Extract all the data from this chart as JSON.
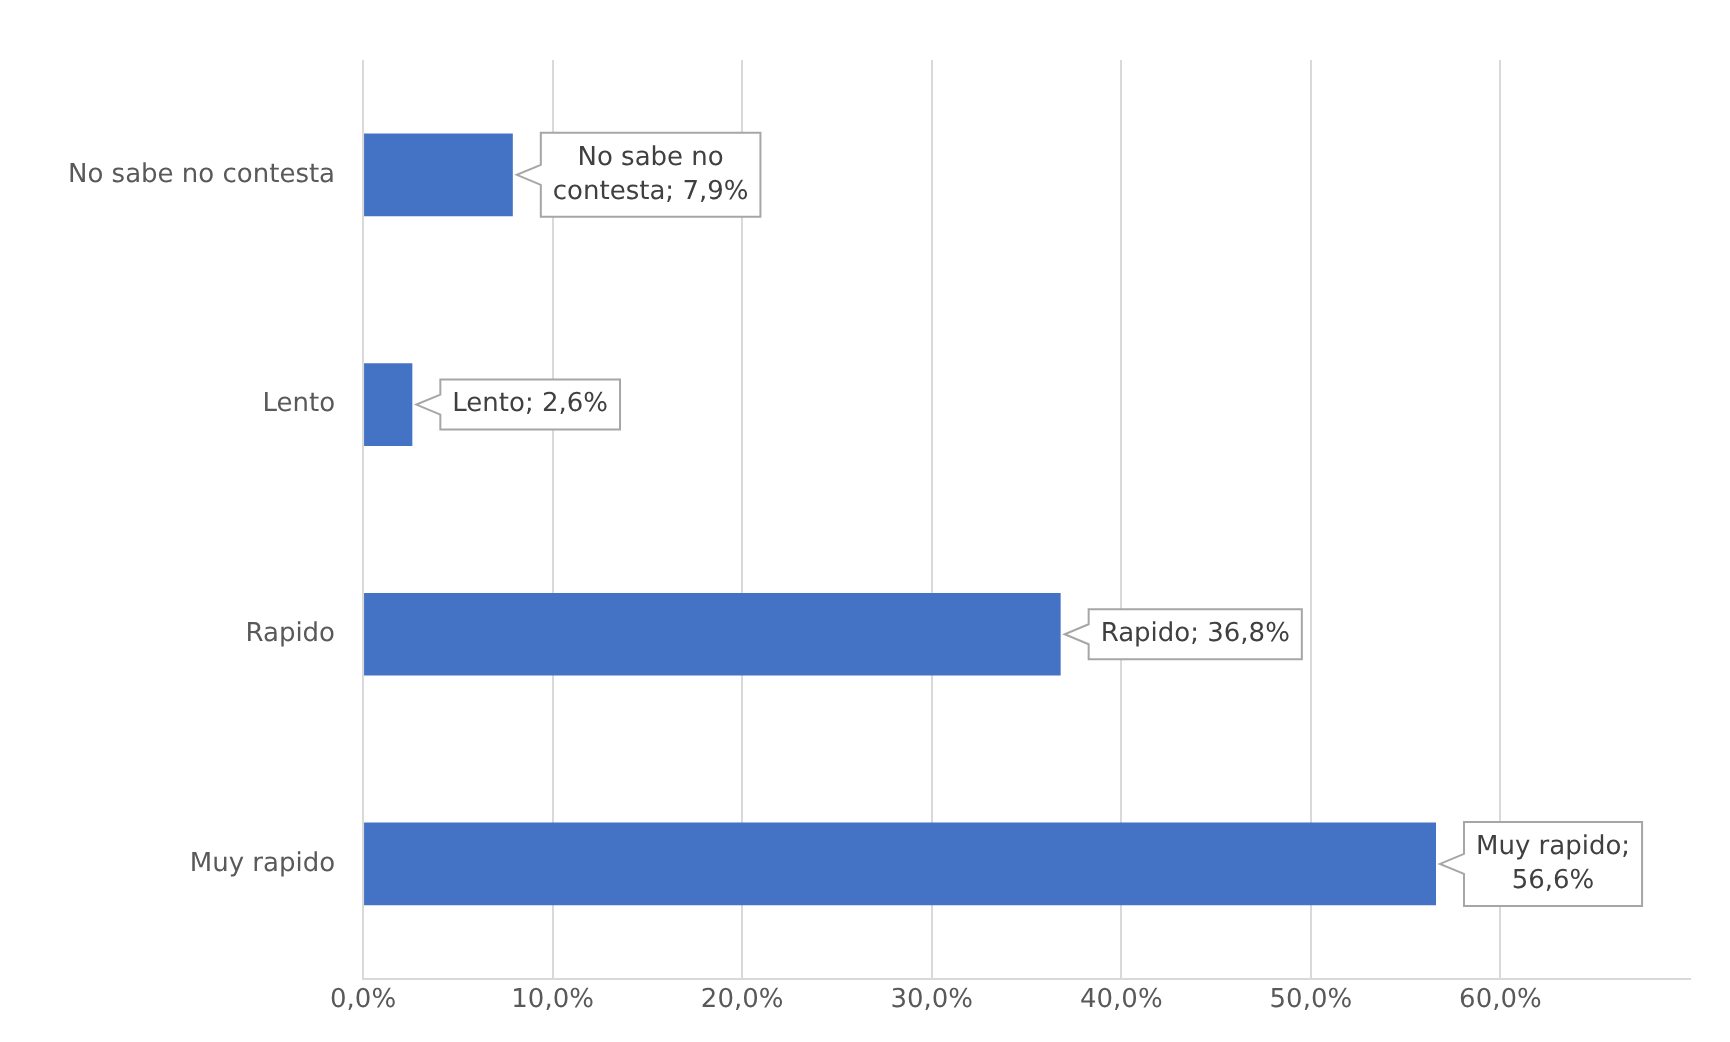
{
  "chart_data": {
    "type": "bar",
    "orientation": "horizontal",
    "categories": [
      "No sabe no contesta",
      "Lento",
      "Rapido",
      "Muy rapido"
    ],
    "values": [
      7.9,
      2.6,
      36.8,
      56.6
    ],
    "value_labels": [
      "No sabe no contesta; 7,9%",
      "Lento; 2,6%",
      "Rapido; 36,8%",
      "Muy rapido; 56,6%"
    ],
    "color": "#4472c4",
    "xlim": [
      0,
      70
    ],
    "xticks": [
      {
        "value": 0,
        "label": "0,0%"
      },
      {
        "value": 10,
        "label": "10,0%"
      },
      {
        "value": 20,
        "label": "20,0%"
      },
      {
        "value": 30,
        "label": "30,0%"
      },
      {
        "value": 40,
        "label": "40,0%"
      },
      {
        "value": 50,
        "label": "50,0%"
      },
      {
        "value": 60,
        "label": "60,0%"
      }
    ],
    "grid": "x",
    "legend": false
  }
}
